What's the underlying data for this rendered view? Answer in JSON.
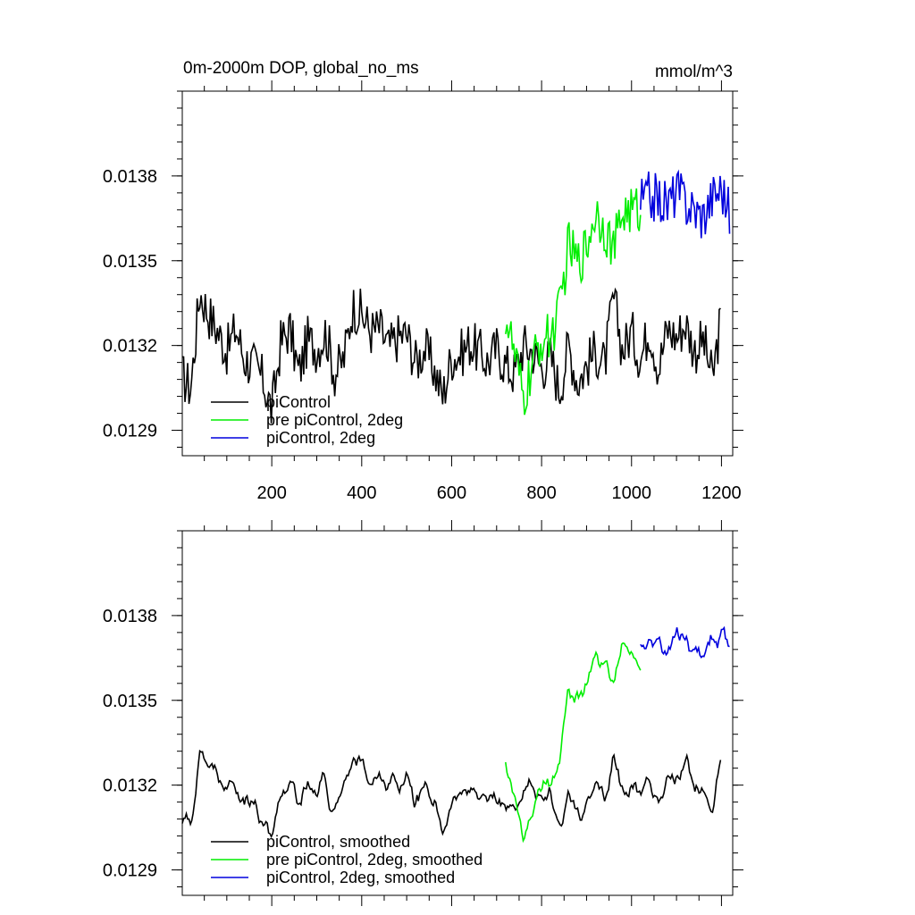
{
  "title": "0m-2000m DOP, global_no_ms",
  "units": "mmol/m^3",
  "colors": {
    "piControl": "#000000",
    "pre": "#00ee00",
    "twodeg": "#0000dd"
  },
  "chart_data": [
    {
      "type": "line",
      "xlim": [
        1,
        1225
      ],
      "ylim": [
        0.01281,
        0.0141
      ],
      "x_ticks": [
        200,
        400,
        600,
        800,
        1000,
        1200
      ],
      "x_tick_labels": [
        "200",
        "400",
        "600",
        "800",
        "1000",
        "1200"
      ],
      "y_ticks": [
        0.0129,
        0.0132,
        0.0135,
        0.0138
      ],
      "y_tick_labels": [
        "0.0129",
        "0.0132",
        "0.0135",
        "0.0138"
      ],
      "grid": false,
      "legend_position": "bottom-left",
      "series": [
        {
          "name": "piControl",
          "color": "#000000",
          "x": [
            1,
            20,
            40,
            60,
            80,
            100,
            120,
            140,
            160,
            180,
            200,
            220,
            240,
            260,
            280,
            300,
            320,
            340,
            360,
            380,
            400,
            420,
            440,
            460,
            480,
            500,
            520,
            540,
            560,
            580,
            600,
            620,
            640,
            660,
            680,
            700,
            720,
            740,
            760,
            780,
            800,
            820,
            840,
            860,
            880,
            900,
            920,
            940,
            960,
            980,
            1000,
            1020,
            1040,
            1060,
            1080,
            1100,
            1120,
            1140,
            1160,
            1180,
            1200
          ],
          "y": [
            0.01309,
            0.01305,
            0.01339,
            0.01331,
            0.01325,
            0.01318,
            0.01326,
            0.01315,
            0.01313,
            0.01308,
            0.01297,
            0.01321,
            0.01326,
            0.0131,
            0.01322,
            0.01319,
            0.01325,
            0.0131,
            0.01315,
            0.01334,
            0.01331,
            0.01325,
            0.01326,
            0.01319,
            0.01323,
            0.01324,
            0.01314,
            0.01319,
            0.01312,
            0.01302,
            0.01316,
            0.01317,
            0.01321,
            0.01318,
            0.01314,
            0.01319,
            0.01313,
            0.0131,
            0.0132,
            0.01318,
            0.01312,
            0.01316,
            0.01304,
            0.0132,
            0.01307,
            0.01313,
            0.01318,
            0.01313,
            0.01337,
            0.01318,
            0.01325,
            0.01315,
            0.01327,
            0.01312,
            0.01326,
            0.01323,
            0.01328,
            0.01318,
            0.01322,
            0.01308,
            0.01331
          ]
        },
        {
          "name": "pre piControl, 2deg",
          "color": "#00ee00",
          "x": [
            720,
            740,
            760,
            780,
            800,
            820,
            840,
            860,
            880,
            900,
            920,
            940,
            960,
            980,
            1000,
            1020
          ],
          "y": [
            0.01331,
            0.01316,
            0.013,
            0.01313,
            0.01322,
            0.01323,
            0.01332,
            0.01356,
            0.01349,
            0.01355,
            0.01368,
            0.01362,
            0.01354,
            0.01367,
            0.01368,
            0.01368
          ]
        },
        {
          "name": "piControl, 2deg",
          "color": "#0000dd",
          "x": [
            1020,
            1040,
            1060,
            1080,
            1100,
            1120,
            1140,
            1160,
            1180,
            1200,
            1220
          ],
          "y": [
            0.01371,
            0.01373,
            0.01372,
            0.0137,
            0.01375,
            0.01371,
            0.01368,
            0.01366,
            0.01373,
            0.01376,
            0.01366
          ]
        }
      ]
    },
    {
      "type": "line",
      "xlim": [
        1,
        1225
      ],
      "ylim": [
        0.01281,
        0.0141
      ],
      "x_ticks": [
        200,
        400,
        600,
        800,
        1000,
        1200
      ],
      "y_ticks": [
        0.0129,
        0.0132,
        0.0135,
        0.0138
      ],
      "y_tick_labels": [
        "0.0129",
        "0.0132",
        "0.0135",
        "0.0138"
      ],
      "grid": false,
      "legend_position": "bottom-left",
      "series": [
        {
          "name": "piControl, smoothed",
          "color": "#000000",
          "x": [
            1,
            20,
            40,
            60,
            80,
            100,
            120,
            140,
            160,
            180,
            200,
            220,
            240,
            260,
            280,
            300,
            320,
            340,
            360,
            380,
            400,
            420,
            440,
            460,
            480,
            500,
            520,
            540,
            560,
            580,
            600,
            620,
            640,
            660,
            680,
            700,
            720,
            740,
            760,
            780,
            800,
            820,
            840,
            860,
            880,
            900,
            920,
            940,
            960,
            980,
            1000,
            1020,
            1040,
            1060,
            1080,
            1100,
            1120,
            1140,
            1160,
            1180,
            1200
          ],
          "y": [
            0.01306,
            0.01308,
            0.01333,
            0.01327,
            0.01323,
            0.0132,
            0.01322,
            0.01314,
            0.01312,
            0.01305,
            0.01302,
            0.01318,
            0.01321,
            0.01312,
            0.0132,
            0.01317,
            0.01322,
            0.01312,
            0.01316,
            0.01329,
            0.01328,
            0.01323,
            0.01323,
            0.01321,
            0.01322,
            0.01322,
            0.01315,
            0.01317,
            0.01312,
            0.01305,
            0.01313,
            0.01316,
            0.01319,
            0.01317,
            0.01314,
            0.01317,
            0.01313,
            0.01311,
            0.01318,
            0.01316,
            0.01313,
            0.01314,
            0.01307,
            0.01316,
            0.01309,
            0.01313,
            0.01317,
            0.01314,
            0.0133,
            0.01317,
            0.01322,
            0.01316,
            0.01324,
            0.01314,
            0.01323,
            0.01322,
            0.01325,
            0.01318,
            0.01321,
            0.01311,
            0.0133
          ]
        },
        {
          "name": "pre piControl, 2deg, smoothed",
          "color": "#00ee00",
          "x": [
            720,
            740,
            760,
            780,
            800,
            820,
            840,
            860,
            880,
            900,
            920,
            940,
            960,
            980,
            1000,
            1020
          ],
          "y": [
            0.01328,
            0.01315,
            0.01303,
            0.01312,
            0.0132,
            0.01322,
            0.0133,
            0.01352,
            0.01349,
            0.01353,
            0.01365,
            0.01361,
            0.01356,
            0.01366,
            0.01367,
            0.01366
          ]
        },
        {
          "name": "piControl, 2deg, smoothed",
          "color": "#0000dd",
          "x": [
            1020,
            1040,
            1060,
            1080,
            1100,
            1120,
            1140,
            1160,
            1180,
            1200,
            1220
          ],
          "y": [
            0.0137,
            0.01372,
            0.01371,
            0.01369,
            0.01374,
            0.01371,
            0.01368,
            0.01366,
            0.01372,
            0.01374,
            0.01368
          ]
        }
      ]
    }
  ]
}
